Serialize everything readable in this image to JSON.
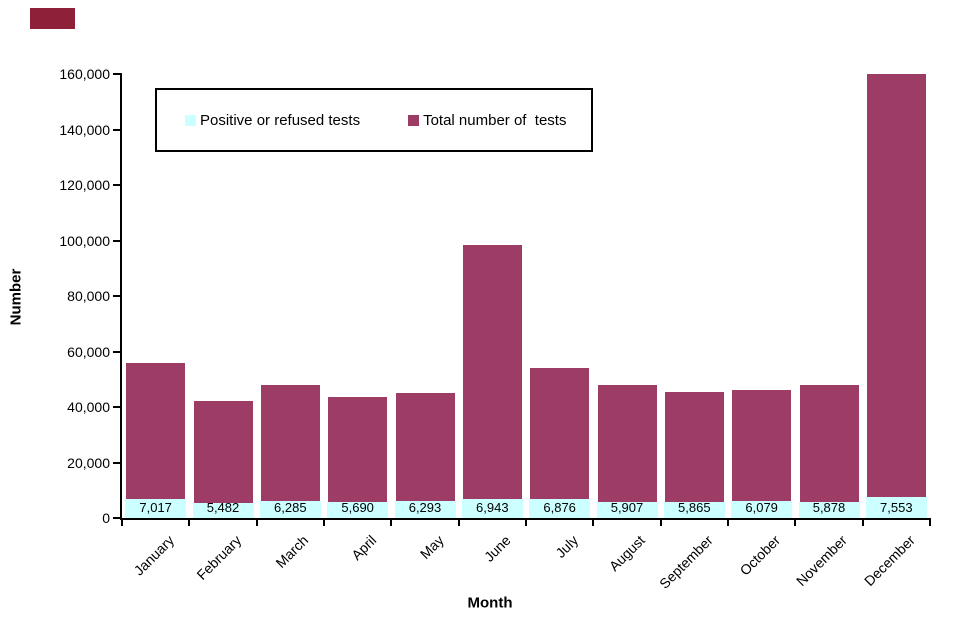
{
  "artifact": {
    "color": "#8E2039"
  },
  "chart_data": {
    "type": "bar",
    "title": "",
    "xlabel": "Month",
    "ylabel": "Number",
    "ylim": [
      0,
      160000
    ],
    "ytick_step": 20000,
    "ytick_labels": [
      "0",
      "20,000",
      "40,000",
      "60,000",
      "80,000",
      "100,000",
      "120,000",
      "140,000",
      "160,000"
    ],
    "categories": [
      "January",
      "February",
      "March",
      "April",
      "May",
      "June",
      "July",
      "August",
      "September",
      "October",
      "November",
      "December"
    ],
    "series": [
      {
        "name": "Positive or refused tests",
        "color": "#CCFFFF",
        "values": [
          7017,
          5482,
          6285,
          5690,
          6293,
          6943,
          6876,
          5907,
          5865,
          6079,
          5878,
          7553
        ],
        "value_labels": [
          "7,017",
          "5,482",
          "6,285",
          "5,690",
          "6,293",
          "6,943",
          "6,876",
          "5,907",
          "5,865",
          "6,079",
          "5,878",
          "7,553"
        ]
      },
      {
        "name": "Total number of  tests",
        "color": "#9D3C64",
        "values": [
          56000,
          42000,
          48000,
          43500,
          45000,
          98500,
          54000,
          48000,
          45500,
          46000,
          48000,
          160000
        ]
      }
    ],
    "legend_position": "inside-top-left",
    "grid": false,
    "axis_color": "#000000"
  }
}
